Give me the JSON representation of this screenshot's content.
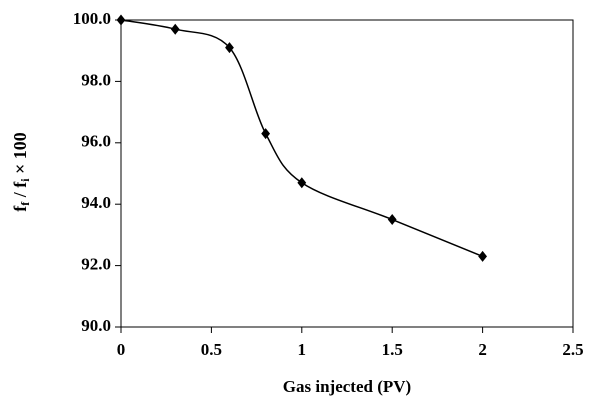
{
  "chart_data": {
    "type": "line",
    "x_label": "Gas injected (PV)",
    "y_label_parts": [
      "f",
      "f",
      " / f",
      "i",
      " × 100"
    ],
    "series": [
      {
        "color": "#000000",
        "x": [
          0,
          0.3,
          0.6,
          0.8,
          1.0,
          1.5,
          2.0
        ],
        "values": [
          100.0,
          99.7,
          99.1,
          96.3,
          94.7,
          93.5,
          92.3
        ]
      }
    ],
    "smooth": true,
    "marker": "diamond",
    "xlim": [
      0,
      2.5
    ],
    "xticks": [
      0,
      0.5,
      1,
      1.5,
      2,
      2.5
    ],
    "ylim": [
      90,
      100
    ],
    "yticks": [
      {
        "value": 90,
        "label": "90.0"
      },
      {
        "value": 92,
        "label": "92.0"
      },
      {
        "value": 94,
        "label": "94.0"
      },
      {
        "value": 96,
        "label": "96.0"
      },
      {
        "value": 98,
        "label": "98.0"
      },
      {
        "value": 100,
        "label": "100.0"
      }
    ],
    "grid": false
  }
}
